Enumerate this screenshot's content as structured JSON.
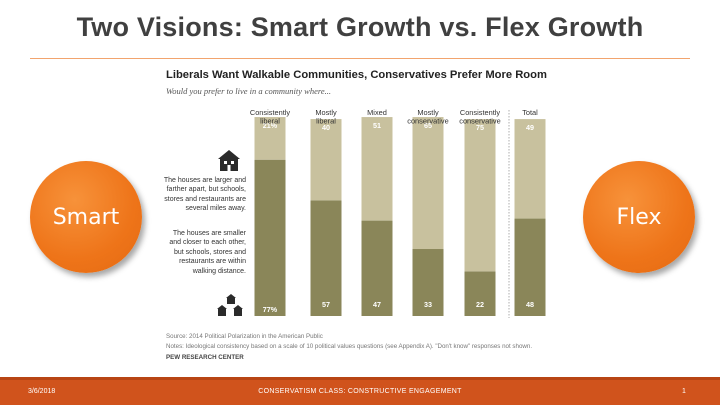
{
  "slide": {
    "title": "Two Visions: Smart Growth vs. Flex Growth",
    "left_circle_label": "Smart",
    "right_circle_label": "Flex",
    "accent_color": "#ee7419"
  },
  "legend": {
    "larger": "The houses are larger and farther apart, but schools, stores and restaurants are several miles away.",
    "smaller": "The houses are smaller and closer to each other, but schools, stores and restaurants are within walking distance."
  },
  "icons": {
    "larger": "large-house-icon",
    "smaller": "small-houses-icon"
  },
  "chart_data": {
    "type": "bar",
    "title": "Liberals Want Walkable Communities, Conservatives Prefer More Room",
    "subtitle": "Would you prefer to live in a community where...",
    "categories": [
      "Consistently liberal",
      "Mostly liberal",
      "Mixed",
      "Mostly conservative",
      "Consistently conservative",
      "Total"
    ],
    "series": [
      {
        "values": [
          77,
          57,
          47,
          33,
          22,
          48
        ],
        "labels": [
          "77%",
          "57",
          "47",
          "33",
          "22",
          "48"
        ],
        "color": "#8a8659"
      },
      {
        "values": [
          21,
          40,
          51,
          65,
          75,
          49
        ],
        "labels": [
          "21%",
          "40",
          "51",
          "65",
          "75",
          "49"
        ],
        "color": "#c8c19e"
      }
    ],
    "stacked": true,
    "ylim": [
      0,
      100
    ],
    "grid": false
  },
  "source": "Source: 2014 Political Polarization in the American Public",
  "notes": "Notes: Ideological consistency based on a scale of 10 political values questions (see Appendix A). \"Don't know\" responses not shown.",
  "credit": "PEW RESEARCH CENTER",
  "footer": {
    "date": "3/6/2018",
    "center": "CONSERVATISM CLASS: CONSTRUCTIVE ENGAGEMENT",
    "page": "1"
  }
}
